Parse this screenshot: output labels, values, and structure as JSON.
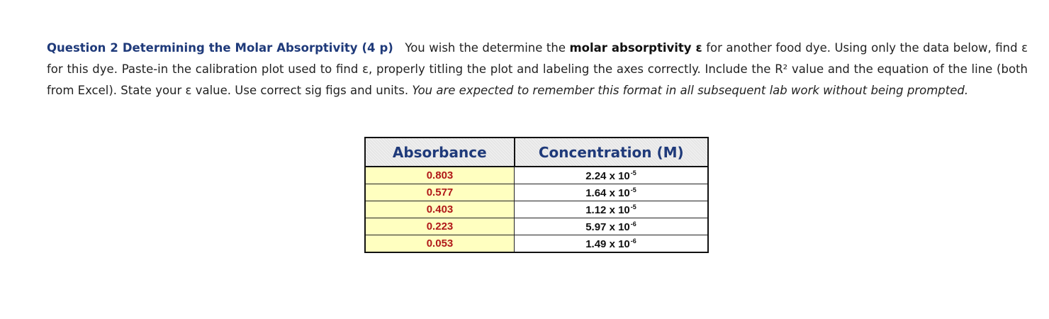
{
  "question": {
    "heading": "Question 2 Determining the Molar Absorptivity (4 p)",
    "text_1": "You wish the determine the",
    "bold_term": "molar absorptivity ε",
    "text_2": "for another food dye. Using only the data below, find ε for this dye. Paste-in the calibration plot used to find ε, properly titling the plot and labeling the axes correctly. Include the R² value and the equation of the line (both from Excel). State your ε value. Use correct sig figs and units.",
    "italic_note": "You are expected to remember this format in all subsequent lab work without being prompted."
  },
  "table": {
    "headers": [
      "Absorbance",
      "Concentration (M)"
    ],
    "rows": [
      {
        "absorbance": "0.803",
        "conc_mantissa": "2.24 x 10",
        "conc_exp": "-5"
      },
      {
        "absorbance": "0.577",
        "conc_mantissa": "1.64 x 10",
        "conc_exp": "-5"
      },
      {
        "absorbance": "0.403",
        "conc_mantissa": "1.12 x 10",
        "conc_exp": "-5"
      },
      {
        "absorbance": "0.223",
        "conc_mantissa": "5.97 x 10",
        "conc_exp": "-6"
      },
      {
        "absorbance": "0.053",
        "conc_mantissa": "1.49 x 10",
        "conc_exp": "-6"
      }
    ]
  }
}
